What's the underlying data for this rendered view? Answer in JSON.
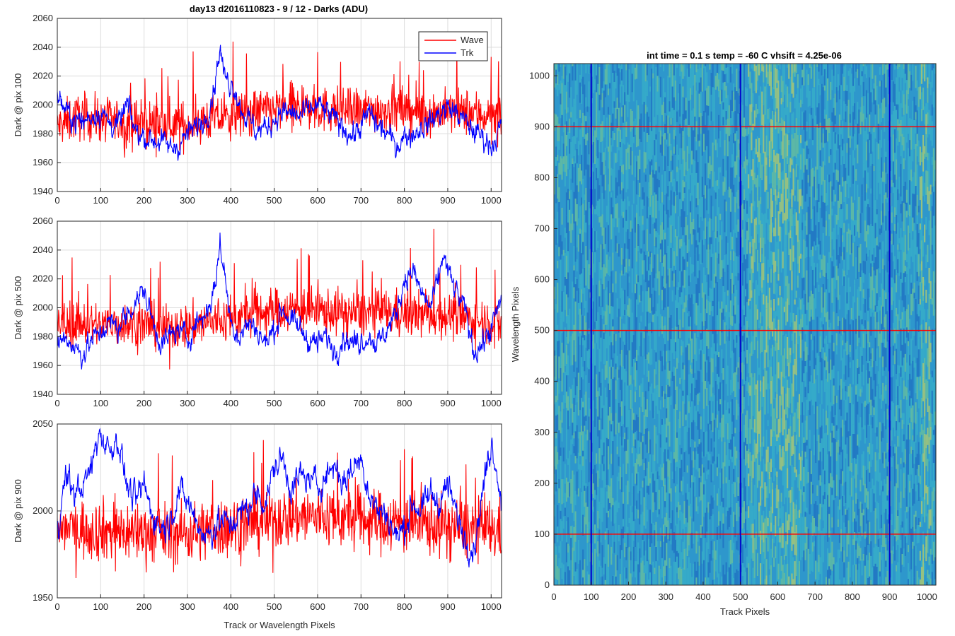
{
  "figure": {
    "suptitle": "day13 d2016110823 - 9 / 12 - Darks (ADU)"
  },
  "chart_data": [
    {
      "type": "line",
      "id": "top",
      "title": "day13 d2016110823 - 9 / 12 - Darks (ADU)",
      "xlabel": "",
      "ylabel": "Dark @ pix 100",
      "xlim": [
        0,
        1024
      ],
      "ylim": [
        1940,
        2060
      ],
      "xticks": [
        0,
        100,
        200,
        300,
        400,
        500,
        600,
        700,
        800,
        900,
        1000
      ],
      "yticks": [
        1940,
        1960,
        1980,
        2000,
        2020,
        2040,
        2060
      ],
      "grid": true,
      "legend": {
        "position": "top-right",
        "entries": [
          "Wave",
          "Trk"
        ]
      },
      "series": [
        {
          "name": "Wave",
          "color": "#ff0000",
          "points": [
            [
              0,
              1985
            ],
            [
              50,
              1992
            ],
            [
              100,
              1990
            ],
            [
              150,
              1988
            ],
            [
              200,
              1987
            ],
            [
              250,
              1987
            ],
            [
              300,
              1986
            ],
            [
              350,
              1990
            ],
            [
              400,
              1992
            ],
            [
              450,
              1995
            ],
            [
              500,
              1997
            ],
            [
              550,
              1998
            ],
            [
              600,
              1997
            ],
            [
              650,
              1996
            ],
            [
              700,
              1996
            ],
            [
              750,
              1997
            ],
            [
              800,
              1996
            ],
            [
              850,
              1994
            ],
            [
              900,
              1995
            ],
            [
              950,
              1995
            ],
            [
              1000,
              1992
            ],
            [
              1023,
              1990
            ]
          ]
        },
        {
          "name": "Trk",
          "color": "#0000ff",
          "points": [
            [
              0,
              2008
            ],
            [
              20,
              1995
            ],
            [
              40,
              1990
            ],
            [
              60,
              1988
            ],
            [
              80,
              1993
            ],
            [
              100,
              1995
            ],
            [
              120,
              1988
            ],
            [
              140,
              1985
            ],
            [
              160,
              2000
            ],
            [
              180,
              1982
            ],
            [
              200,
              1978
            ],
            [
              220,
              1976
            ],
            [
              240,
              1975
            ],
            [
              260,
              1970
            ],
            [
              280,
              1972
            ],
            [
              300,
              1980
            ],
            [
              320,
              1985
            ],
            [
              340,
              1990
            ],
            [
              360,
              2010
            ],
            [
              370,
              2030
            ],
            [
              375,
              2040
            ],
            [
              385,
              2020
            ],
            [
              400,
              2015
            ],
            [
              410,
              2012
            ],
            [
              420,
              2000
            ],
            [
              440,
              1990
            ],
            [
              460,
              1982
            ],
            [
              480,
              1984
            ],
            [
              500,
              1990
            ],
            [
              520,
              1995
            ],
            [
              540,
              1994
            ],
            [
              560,
              1992
            ],
            [
              580,
              1996
            ],
            [
              600,
              2000
            ],
            [
              620,
              1995
            ],
            [
              640,
              1990
            ],
            [
              660,
              1985
            ],
            [
              680,
              1978
            ],
            [
              700,
              1985
            ],
            [
              720,
              1995
            ],
            [
              740,
              1985
            ],
            [
              760,
              1980
            ],
            [
              780,
              1972
            ],
            [
              800,
              1978
            ],
            [
              820,
              1980
            ],
            [
              840,
              1985
            ],
            [
              860,
              1988
            ],
            [
              880,
              1994
            ],
            [
              900,
              1998
            ],
            [
              920,
              1995
            ],
            [
              940,
              1988
            ],
            [
              960,
              1982
            ],
            [
              980,
              1978
            ],
            [
              1000,
              1972
            ],
            [
              1023,
              1985
            ]
          ]
        }
      ]
    },
    {
      "type": "line",
      "id": "middle",
      "xlabel": "",
      "ylabel": "Dark @ pix 500",
      "xlim": [
        0,
        1024
      ],
      "ylim": [
        1940,
        2060
      ],
      "xticks": [
        0,
        100,
        200,
        300,
        400,
        500,
        600,
        700,
        800,
        900,
        1000
      ],
      "yticks": [
        1940,
        1960,
        1980,
        2000,
        2020,
        2040,
        2060
      ],
      "grid": true,
      "series": [
        {
          "name": "Wave",
          "color": "#ff0000",
          "points": [
            [
              0,
              1988
            ],
            [
              50,
              1990
            ],
            [
              100,
              1988
            ],
            [
              150,
              1989
            ],
            [
              200,
              1988
            ],
            [
              250,
              1986
            ],
            [
              300,
              1987
            ],
            [
              350,
              1990
            ],
            [
              400,
              1992
            ],
            [
              450,
              1996
            ],
            [
              500,
              1998
            ],
            [
              550,
              1999
            ],
            [
              600,
              1998
            ],
            [
              650,
              1997
            ],
            [
              700,
              1996
            ],
            [
              750,
              1997
            ],
            [
              800,
              1996
            ],
            [
              850,
              1995
            ],
            [
              900,
              1995
            ],
            [
              950,
              1992
            ],
            [
              1000,
              1990
            ],
            [
              1023,
              1988
            ]
          ]
        },
        {
          "name": "Trk",
          "color": "#0000ff",
          "points": [
            [
              0,
              1975
            ],
            [
              20,
              1980
            ],
            [
              40,
              1972
            ],
            [
              60,
              1968
            ],
            [
              80,
              1978
            ],
            [
              100,
              1983
            ],
            [
              120,
              1990
            ],
            [
              140,
              1986
            ],
            [
              160,
              1995
            ],
            [
              180,
              2005
            ],
            [
              200,
              2012
            ],
            [
              220,
              1990
            ],
            [
              240,
              1975
            ],
            [
              260,
              1980
            ],
            [
              280,
              1985
            ],
            [
              300,
              1978
            ],
            [
              320,
              1990
            ],
            [
              340,
              1995
            ],
            [
              360,
              2010
            ],
            [
              370,
              2030
            ],
            [
              375,
              2045
            ],
            [
              385,
              2025
            ],
            [
              400,
              1990
            ],
            [
              420,
              1980
            ],
            [
              440,
              1990
            ],
            [
              460,
              1985
            ],
            [
              480,
              1975
            ],
            [
              500,
              1985
            ],
            [
              520,
              2000
            ],
            [
              540,
              1990
            ],
            [
              560,
              1985
            ],
            [
              580,
              1978
            ],
            [
              600,
              1975
            ],
            [
              620,
              1980
            ],
            [
              640,
              1970
            ],
            [
              660,
              1980
            ],
            [
              680,
              1975
            ],
            [
              700,
              1978
            ],
            [
              720,
              1980
            ],
            [
              740,
              1975
            ],
            [
              760,
              1985
            ],
            [
              780,
              1995
            ],
            [
              800,
              2020
            ],
            [
              820,
              2025
            ],
            [
              840,
              2010
            ],
            [
              860,
              2000
            ],
            [
              880,
              2020
            ],
            [
              890,
              2038
            ],
            [
              900,
              2025
            ],
            [
              920,
              2010
            ],
            [
              940,
              1998
            ],
            [
              960,
              1970
            ],
            [
              980,
              1975
            ],
            [
              1000,
              1985
            ],
            [
              1023,
              2005
            ]
          ]
        }
      ]
    },
    {
      "type": "line",
      "id": "bottom",
      "xlabel": "Track or Wavelength Pixels",
      "ylabel": "Dark @ pix 900",
      "xlim": [
        0,
        1024
      ],
      "ylim": [
        1950,
        2050
      ],
      "xticks": [
        0,
        100,
        200,
        300,
        400,
        500,
        600,
        700,
        800,
        900,
        1000
      ],
      "yticks": [
        1950,
        2000,
        2050
      ],
      "grid": true,
      "series": [
        {
          "name": "Wave",
          "color": "#ff0000",
          "points": [
            [
              0,
              1990
            ],
            [
              50,
              1990
            ],
            [
              100,
              1989
            ],
            [
              150,
              1988
            ],
            [
              200,
              1988
            ],
            [
              250,
              1987
            ],
            [
              300,
              1987
            ],
            [
              350,
              1989
            ],
            [
              400,
              1991
            ],
            [
              450,
              1993
            ],
            [
              500,
              1995
            ],
            [
              550,
              1997
            ],
            [
              600,
              1997
            ],
            [
              650,
              1996
            ],
            [
              700,
              1995
            ],
            [
              750,
              1994
            ],
            [
              800,
              1993
            ],
            [
              850,
              1992
            ],
            [
              900,
              1991
            ],
            [
              950,
              1990
            ],
            [
              1000,
              1989
            ],
            [
              1023,
              1988
            ]
          ]
        },
        {
          "name": "Trk",
          "color": "#0000ff",
          "points": [
            [
              0,
              1990
            ],
            [
              20,
              2020
            ],
            [
              40,
              2010
            ],
            [
              60,
              2015
            ],
            [
              80,
              2025
            ],
            [
              90,
              2040
            ],
            [
              100,
              2045
            ],
            [
              120,
              2035
            ],
            [
              140,
              2042
            ],
            [
              160,
              2015
            ],
            [
              180,
              2005
            ],
            [
              200,
              2015
            ],
            [
              220,
              1998
            ],
            [
              240,
              1990
            ],
            [
              260,
              1995
            ],
            [
              280,
              2012
            ],
            [
              300,
              2005
            ],
            [
              320,
              1995
            ],
            [
              340,
              1985
            ],
            [
              360,
              1990
            ],
            [
              380,
              1995
            ],
            [
              400,
              1992
            ],
            [
              420,
              1998
            ],
            [
              440,
              2002
            ],
            [
              460,
              2010
            ],
            [
              480,
              2005
            ],
            [
              500,
              2025
            ],
            [
              520,
              2030
            ],
            [
              540,
              2012
            ],
            [
              560,
              2020
            ],
            [
              580,
              2018
            ],
            [
              600,
              2015
            ],
            [
              620,
              2020
            ],
            [
              640,
              2028
            ],
            [
              660,
              2015
            ],
            [
              680,
              2025
            ],
            [
              700,
              2030
            ],
            [
              720,
              2010
            ],
            [
              740,
              2000
            ],
            [
              760,
              1998
            ],
            [
              780,
              1985
            ],
            [
              800,
              1990
            ],
            [
              820,
              2005
            ],
            [
              840,
              2000
            ],
            [
              860,
              2010
            ],
            [
              880,
              2005
            ],
            [
              900,
              2015
            ],
            [
              920,
              1998
            ],
            [
              940,
              1985
            ],
            [
              960,
              1978
            ],
            [
              980,
              2010
            ],
            [
              1000,
              2040
            ],
            [
              1010,
              2030
            ],
            [
              1023,
              2005
            ]
          ]
        }
      ]
    },
    {
      "type": "heatmap",
      "id": "image",
      "title": "int time = 0.1 s   temp = -60 C   vhsift = 4.25e-06",
      "xlabel": "Track Pixels",
      "ylabel": "Wavelength Pixels",
      "xlim": [
        0,
        1024
      ],
      "ylim": [
        0,
        1024
      ],
      "xticks": [
        0,
        100,
        200,
        300,
        400,
        500,
        600,
        700,
        800,
        900,
        1000
      ],
      "yticks": [
        0,
        100,
        200,
        300,
        400,
        500,
        600,
        700,
        800,
        900,
        1000
      ],
      "colormap": [
        "#1f6fc2",
        "#2f8fd6",
        "#38b0c8",
        "#6cc39a",
        "#b8cf6a"
      ],
      "background_color": "#2e97cc",
      "bright_band_columns": [
        [
          520,
          660
        ],
        [
          980,
          1010
        ]
      ],
      "row_markers": {
        "values": [
          100,
          500,
          900
        ],
        "color": "#ff0000"
      },
      "column_markers": {
        "values": [
          100,
          500,
          900
        ],
        "color": "#0000cc"
      }
    }
  ]
}
